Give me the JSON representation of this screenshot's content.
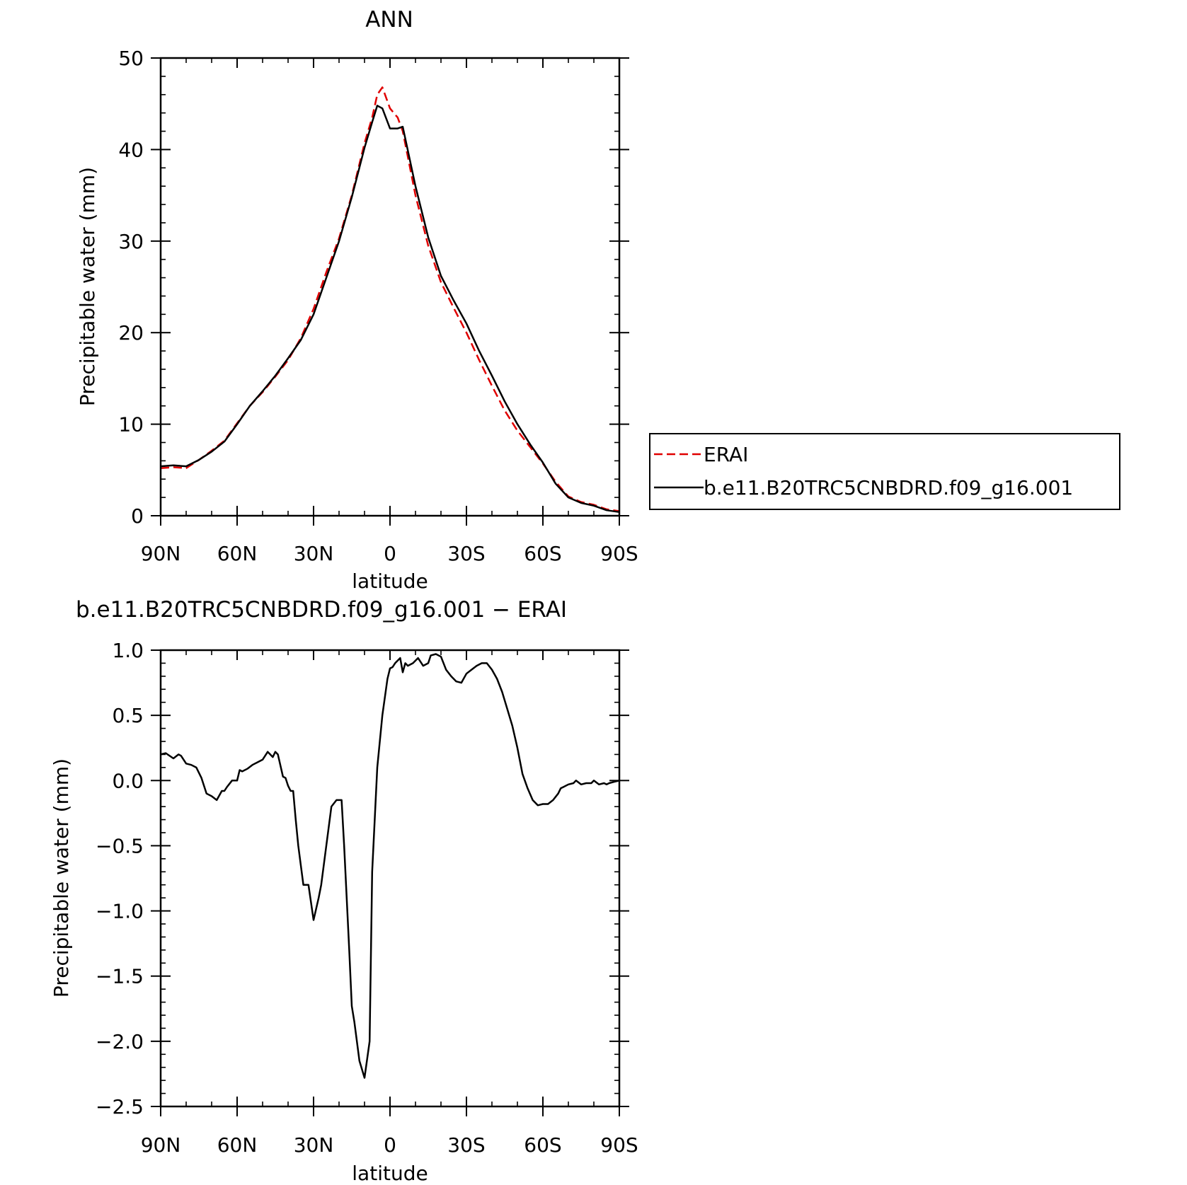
{
  "colors": {
    "axes": "#000000",
    "erai": "#e00000",
    "model": "#000000",
    "background": "#ffffff"
  },
  "chart_data": [
    {
      "type": "line",
      "title": "ANN",
      "xlabel": "latitude",
      "ylabel": "Precipitable water (mm)",
      "xlim": [
        90,
        -90
      ],
      "ylim": [
        0,
        50
      ],
      "x_ticks": [
        90,
        60,
        30,
        0,
        -30,
        -60,
        -90
      ],
      "x_tick_labels": [
        "90N",
        "60N",
        "30N",
        "0",
        "30S",
        "60S",
        "90S"
      ],
      "y_ticks": [
        0,
        10,
        20,
        30,
        40,
        50
      ],
      "y_tick_labels": [
        "0",
        "10",
        "20",
        "30",
        "40",
        "50"
      ],
      "legend": {
        "placement": "right",
        "entries": [
          "ERAI",
          "b.e11.B20TRC5CNBDRD.f09_g16.001"
        ]
      },
      "grid": false,
      "series": [
        {
          "name": "ERAI",
          "style": "dashed",
          "color": "#e00000",
          "x": [
            90,
            85,
            80,
            75,
            70,
            65,
            60,
            55,
            50,
            45,
            40,
            35,
            30,
            25,
            20,
            15,
            10,
            7,
            5,
            3,
            0,
            -3,
            -5,
            -10,
            -15,
            -20,
            -25,
            -30,
            -35,
            -40,
            -45,
            -50,
            -55,
            -60,
            -65,
            -70,
            -75,
            -80,
            -85,
            -90
          ],
          "values": [
            5.2,
            5.3,
            5.2,
            6.1,
            7.1,
            8.2,
            10.1,
            12.0,
            13.5,
            15.2,
            17.0,
            19.4,
            22.6,
            26.6,
            30.3,
            35.0,
            40.7,
            43.5,
            46.0,
            46.8,
            44.5,
            43.5,
            42.0,
            35.0,
            29.5,
            25.5,
            22.7,
            20.0,
            17.0,
            14.2,
            11.5,
            9.3,
            7.5,
            5.7,
            3.7,
            2.1,
            1.5,
            1.2,
            0.7,
            0.5
          ]
        },
        {
          "name": "b.e11.B20TRC5CNBDRD.f09_g16.001",
          "style": "solid",
          "color": "#000000",
          "x": [
            90,
            85,
            80,
            75,
            70,
            65,
            60,
            55,
            50,
            45,
            40,
            35,
            30,
            25,
            20,
            15,
            10,
            7,
            5,
            3,
            0,
            -3,
            -5,
            -10,
            -15,
            -20,
            -25,
            -30,
            -35,
            -40,
            -45,
            -50,
            -55,
            -60,
            -65,
            -70,
            -75,
            -80,
            -85,
            -90
          ],
          "values": [
            5.4,
            5.5,
            5.4,
            6.1,
            7.0,
            8.1,
            10.0,
            12.0,
            13.6,
            15.3,
            17.2,
            19.2,
            22.0,
            26.0,
            30.0,
            34.8,
            40.2,
            43.0,
            44.8,
            44.5,
            42.3,
            42.3,
            42.5,
            36.0,
            30.4,
            26.2,
            23.5,
            21.0,
            18.0,
            15.3,
            12.5,
            10.0,
            7.8,
            5.8,
            3.5,
            2.0,
            1.4,
            1.1,
            0.6,
            0.4
          ]
        }
      ]
    },
    {
      "type": "line",
      "title": "b.e11.B20TRC5CNBDRD.f09_g16.001 − ERAI",
      "xlabel": "latitude",
      "ylabel": "Precipitable water (mm)",
      "xlim": [
        90,
        -90
      ],
      "ylim": [
        -2.5,
        1.0
      ],
      "x_ticks": [
        90,
        60,
        30,
        0,
        -30,
        -60,
        -90
      ],
      "x_tick_labels": [
        "90N",
        "60N",
        "30N",
        "0",
        "30S",
        "60S",
        "90S"
      ],
      "y_ticks": [
        1.0,
        0.5,
        0.0,
        -0.5,
        -1.0,
        -1.5,
        -2.0,
        -2.5
      ],
      "y_tick_labels": [
        "1.0",
        "0.5",
        "0.0",
        "−0.5",
        "−1.0",
        "−1.5",
        "−2.0",
        "−2.5"
      ],
      "grid": false,
      "series": [
        {
          "style": "solid",
          "color": "#000000",
          "x": [
            90,
            88,
            85,
            83,
            82,
            80,
            78,
            76,
            74,
            72,
            70,
            68,
            66,
            65,
            64,
            62,
            60,
            59,
            58,
            56,
            54,
            52,
            51,
            50,
            48,
            46,
            45,
            44,
            42,
            41,
            40,
            39,
            38,
            37,
            36,
            35,
            34,
            32,
            30,
            28,
            27,
            25,
            23,
            21,
            19,
            18,
            17,
            16,
            15,
            14,
            12,
            10,
            8,
            7,
            5,
            3,
            1,
            0,
            -1,
            -2,
            -4,
            -5,
            -6,
            -7,
            -9,
            -11,
            -13,
            -15,
            -16,
            -18,
            -20,
            -22,
            -24,
            -26,
            -28,
            -30,
            -32,
            -34,
            -36,
            -38,
            -40,
            -42,
            -44,
            -46,
            -48,
            -50,
            -52,
            -54,
            -56,
            -58,
            -60,
            -62,
            -64,
            -66,
            -67,
            -68,
            -70,
            -72,
            -73,
            -75,
            -77,
            -79,
            -80,
            -82,
            -84,
            -85,
            -86,
            -88,
            -90
          ],
          "values": [
            0.2,
            0.21,
            0.17,
            0.2,
            0.19,
            0.13,
            0.12,
            0.1,
            0.02,
            -0.1,
            -0.12,
            -0.15,
            -0.08,
            -0.08,
            -0.05,
            0.0,
            0.0,
            0.08,
            0.07,
            0.09,
            0.12,
            0.14,
            0.15,
            0.16,
            0.22,
            0.18,
            0.22,
            0.2,
            0.03,
            0.02,
            -0.04,
            -0.08,
            -0.08,
            -0.3,
            -0.5,
            -0.65,
            -0.8,
            -0.8,
            -1.07,
            -0.9,
            -0.8,
            -0.5,
            -0.2,
            -0.15,
            -0.15,
            -0.5,
            -0.9,
            -1.3,
            -1.73,
            -1.85,
            -2.15,
            -2.28,
            -2.0,
            -0.7,
            0.1,
            0.5,
            0.78,
            0.86,
            0.87,
            0.9,
            0.94,
            0.83,
            0.9,
            0.88,
            0.9,
            0.94,
            0.88,
            0.9,
            0.96,
            0.97,
            0.95,
            0.85,
            0.8,
            0.76,
            0.75,
            0.82,
            0.85,
            0.88,
            0.9,
            0.9,
            0.85,
            0.78,
            0.68,
            0.55,
            0.42,
            0.25,
            0.05,
            -0.06,
            -0.15,
            -0.19,
            -0.18,
            -0.18,
            -0.15,
            -0.1,
            -0.06,
            -0.05,
            -0.03,
            -0.02,
            0.0,
            -0.03,
            -0.02,
            -0.02,
            0.0,
            -0.03,
            -0.02,
            -0.03,
            -0.02,
            -0.01,
            0.0
          ]
        }
      ]
    }
  ]
}
